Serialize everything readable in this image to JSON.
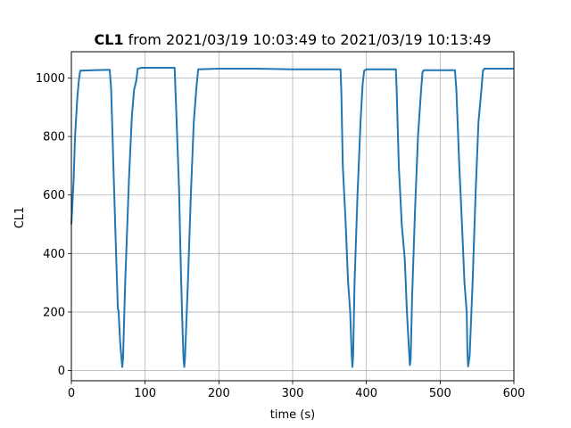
{
  "chart_data": {
    "type": "line",
    "title": {
      "bold_part": "CL1",
      "rest": " from 2021/03/19 10:03:49 to 2021/03/19 10:13:49"
    },
    "xlabel": "time (s)",
    "ylabel": "CL1",
    "xlim": [
      0,
      600
    ],
    "ylim": [
      -35,
      1090
    ],
    "xticks": [
      0,
      100,
      200,
      300,
      400,
      500,
      600
    ],
    "yticks": [
      0,
      200,
      400,
      600,
      800,
      1000
    ],
    "grid": true,
    "color": "#1f77b4",
    "series": [
      {
        "x": [
          0,
          3,
          5,
          8,
          10,
          12,
          30,
          52,
          54,
          57,
          60,
          63,
          64,
          66,
          68,
          69,
          70,
          73,
          78,
          82,
          85,
          88,
          90,
          92,
          95,
          110,
          130,
          140,
          142,
          146,
          148,
          150,
          152,
          153,
          154,
          158,
          162,
          166,
          170,
          172,
          200,
          250,
          300,
          340,
          365,
          366,
          368,
          372,
          375,
          378,
          380,
          381,
          382,
          384,
          388,
          392,
          395,
          397,
          400,
          420,
          440,
          441,
          444,
          448,
          452,
          455,
          458,
          459,
          460,
          462,
          466,
          470,
          474,
          476,
          478,
          490,
          510,
          520,
          522,
          526,
          530,
          533,
          536,
          537,
          538,
          540,
          544,
          548,
          552,
          556,
          558,
          560,
          580,
          600
        ],
        "y": [
          500,
          650,
          800,
          930,
          990,
          1025,
          1027,
          1028,
          960,
          700,
          450,
          210,
          205,
          100,
          40,
          12,
          40,
          300,
          650,
          870,
          960,
          990,
          1032,
          1033,
          1035,
          1035,
          1035,
          1035,
          900,
          620,
          400,
          200,
          40,
          12,
          40,
          300,
          600,
          850,
          980,
          1030,
          1032,
          1032,
          1030,
          1030,
          1030,
          950,
          700,
          500,
          310,
          200,
          60,
          12,
          50,
          300,
          600,
          850,
          980,
          1025,
          1030,
          1030,
          1030,
          960,
          700,
          500,
          380,
          200,
          60,
          18,
          40,
          250,
          550,
          800,
          950,
          1020,
          1027,
          1027,
          1027,
          1027,
          960,
          700,
          480,
          300,
          200,
          60,
          14,
          50,
          300,
          600,
          850,
          960,
          1025,
          1032,
          1032,
          1032
        ]
      }
    ]
  }
}
